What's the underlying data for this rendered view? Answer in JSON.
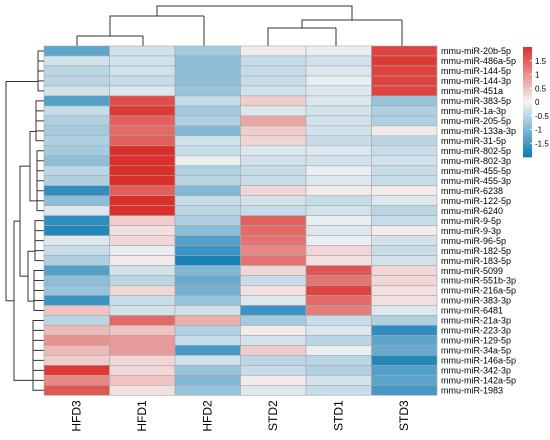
{
  "chart_data": {
    "type": "heatmap",
    "columns": [
      "HFD3",
      "HFD1",
      "HFD2",
      "STD2",
      "STD1",
      "STD3"
    ],
    "rows": [
      "mmu-miR-20b-5p",
      "mmu-miR-486a-5p",
      "mmu-miR-144-5p",
      "mmu-miR-144-3p",
      "mmu-miR-451a",
      "mmu-miR-383-5p",
      "mmu-miR-1a-3p",
      "mmu-miR-205-5p",
      "mmu-miR-133a-3p",
      "mmu-miR-31-5p",
      "mmu-miR-802-5p",
      "mmu-miR-802-3p",
      "mmu-miR-455-5p",
      "mmu-miR-455-3p",
      "mmu-miR-6238",
      "mmu-miR-122-5p",
      "mmu-miR-6240",
      "mmu-miR-9-5p",
      "mmu-miR-9-3p",
      "mmu-miR-96-5p",
      "mmu-miR-182-5p",
      "mmu-miR-183-5p",
      "mmu-miR-5099",
      "mmu-miR-551b-3p",
      "mmu-miR-216a-5p",
      "mmu-miR-383-3p",
      "mmu-miR-6481",
      "mmu-miR-21a-3p",
      "mmu-miR-223-3p",
      "mmu-miR-129-5p",
      "mmu-miR-34a-5p",
      "mmu-miR-146a-5p",
      "mmu-miR-342-3p",
      "mmu-miR-142a-5p",
      "mmu-miR-1983"
    ],
    "values": [
      [
        -1.3,
        -0.3,
        -0.7,
        0.1,
        -0.1,
        1.8
      ],
      [
        -0.3,
        -0.3,
        -0.9,
        -0.4,
        -0.3,
        1.9
      ],
      [
        -0.5,
        -0.3,
        -0.9,
        -0.4,
        -0.2,
        1.8
      ],
      [
        -0.5,
        -0.4,
        -0.9,
        -0.4,
        -0.1,
        1.8
      ],
      [
        -0.3,
        -0.2,
        -0.8,
        -0.3,
        -0.2,
        1.8
      ],
      [
        -1.4,
        1.7,
        -0.4,
        0.4,
        -0.2,
        -0.8
      ],
      [
        -0.4,
        1.9,
        -0.7,
        -0.2,
        -0.3,
        -0.6
      ],
      [
        -0.6,
        1.5,
        -0.6,
        0.8,
        -0.3,
        -0.6
      ],
      [
        -0.7,
        1.4,
        -1.0,
        0.4,
        -0.3,
        0.1
      ],
      [
        -0.6,
        1.5,
        -0.3,
        0.3,
        -0.4,
        -0.5
      ],
      [
        -0.7,
        2.0,
        -0.4,
        -0.2,
        -0.2,
        -0.4
      ],
      [
        -0.9,
        2.0,
        -0.1,
        -0.3,
        -0.3,
        -0.3
      ],
      [
        -0.5,
        2.0,
        -0.6,
        -0.4,
        -0.1,
        -0.4
      ],
      [
        -0.6,
        2.0,
        -0.5,
        -0.4,
        -0.2,
        -0.4
      ],
      [
        -1.7,
        1.5,
        -1.0,
        0.3,
        0.1,
        0.1
      ],
      [
        -0.9,
        2.0,
        -0.4,
        -0.3,
        -0.4,
        -0.2
      ],
      [
        -0.2,
        2.0,
        -0.5,
        -0.4,
        -0.3,
        -0.5
      ],
      [
        -1.7,
        0.4,
        -0.6,
        1.5,
        -0.1,
        -0.4
      ],
      [
        -1.8,
        0.2,
        -0.9,
        1.4,
        -0.2,
        0.1
      ],
      [
        -0.2,
        0.3,
        -1.4,
        1.3,
        -0.1,
        -0.3
      ],
      [
        -0.4,
        -0.1,
        -1.6,
        1.1,
        0.3,
        -0.4
      ],
      [
        -0.6,
        0.1,
        -1.9,
        1.3,
        0.2,
        -0.3
      ],
      [
        -1.4,
        -0.3,
        -1.0,
        0.3,
        1.6,
        0.3
      ],
      [
        -0.9,
        -0.5,
        -1.2,
        -0.4,
        1.3,
        0.3
      ],
      [
        -0.8,
        0.3,
        -1.1,
        0.2,
        1.8,
        0.2
      ],
      [
        -1.6,
        -0.4,
        -0.8,
        -0.2,
        1.4,
        0.2
      ],
      [
        0.5,
        -0.3,
        -0.3,
        -1.6,
        1.2,
        -0.2
      ],
      [
        -0.5,
        1.4,
        0.7,
        -0.7,
        -0.4,
        -0.6
      ],
      [
        0.6,
        0.5,
        -0.6,
        0.1,
        -0.2,
        -1.7
      ],
      [
        1.0,
        0.9,
        -0.4,
        -0.3,
        -0.5,
        -1.3
      ],
      [
        0.6,
        0.9,
        -1.5,
        0.4,
        -0.1,
        -1.2
      ],
      [
        0.4,
        0.3,
        -0.3,
        -0.5,
        -0.5,
        -1.8
      ],
      [
        1.9,
        0.3,
        -0.8,
        -0.4,
        -0.6,
        -1.4
      ],
      [
        1.1,
        0.5,
        -1.0,
        0.1,
        -0.3,
        -1.3
      ],
      [
        1.6,
        0.2,
        -0.8,
        -0.2,
        -0.4,
        -1.5
      ]
    ],
    "color_scale": {
      "min": -2.0,
      "max": 2.0,
      "colors": [
        "#0c7bb6",
        "#f4f4f4",
        "#db2f2b"
      ]
    },
    "legend_ticks": [
      "1.5",
      "1",
      "0.5",
      "0",
      "-0.5",
      "-1",
      "-1.5"
    ],
    "legend_tick_values": [
      1.5,
      1,
      0.5,
      0,
      -0.5,
      -1,
      -1.5
    ],
    "legend_placement": "right",
    "dendrograms": {
      "rows": true,
      "columns": true
    }
  }
}
